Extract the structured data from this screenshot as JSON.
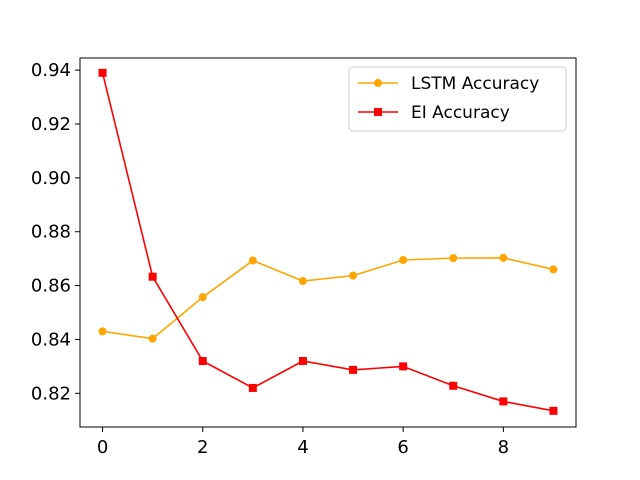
{
  "chart_data": {
    "type": "line",
    "title": "",
    "xlabel": "",
    "ylabel": "",
    "x": [
      0,
      1,
      2,
      3,
      4,
      5,
      6,
      7,
      8,
      9
    ],
    "xlim": [
      -0.45,
      9.45
    ],
    "ylim": [
      0.8075,
      0.9445
    ],
    "xticks": [
      0,
      2,
      4,
      6,
      8
    ],
    "xtick_labels": [
      "0",
      "2",
      "4",
      "6",
      "8"
    ],
    "yticks": [
      0.82,
      0.84,
      0.86,
      0.88,
      0.9,
      0.92,
      0.94
    ],
    "ytick_labels": [
      "0.82",
      "0.84",
      "0.86",
      "0.88",
      "0.90",
      "0.92",
      "0.94"
    ],
    "grid": false,
    "legend_position": "top-right",
    "series": [
      {
        "name": "LSTM Accuracy",
        "color": "#ffa500",
        "marker": "circle",
        "values": [
          0.843,
          0.8403,
          0.8557,
          0.8693,
          0.8617,
          0.8637,
          0.8695,
          0.8702,
          0.8703,
          0.866
        ]
      },
      {
        "name": "EI Accuracy",
        "color": "#ff0000",
        "marker": "square",
        "values": [
          0.939,
          0.8633,
          0.832,
          0.822,
          0.832,
          0.8287,
          0.83,
          0.8228,
          0.817,
          0.8135
        ]
      }
    ]
  }
}
